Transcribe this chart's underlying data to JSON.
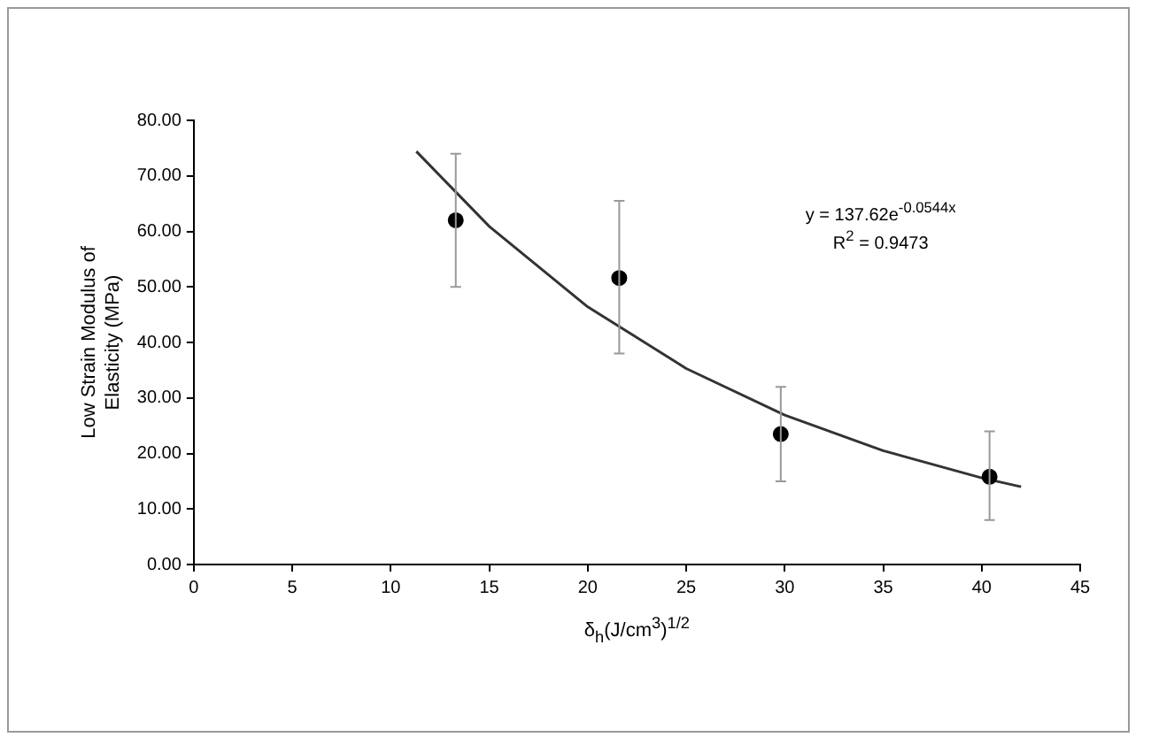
{
  "chart_data": {
    "type": "scatter",
    "xlabel": "δ$_{h}$(J/cm$^{3}$)$^{1/2}$",
    "ylabel": "Low Strain Modulus of\nElasticity (MPa)",
    "x": [
      13.3,
      21.6,
      29.8,
      40.4
    ],
    "series": [
      {
        "color": "#000000",
        "marker": "circle",
        "values": [
          62,
          51.6,
          23.5,
          15.8
        ],
        "errors": [
          [
            50,
            74
          ],
          [
            38,
            65.5
          ],
          [
            15,
            32
          ],
          [
            8,
            24
          ]
        ]
      },
      {
        "type": "line",
        "color": "#333333",
        "marker": "none",
        "x": [
          11.3,
          15,
          20,
          25,
          30,
          35,
          40,
          42
        ],
        "values": [
          74.4,
          60.9,
          46.4,
          35.3,
          26.9,
          20.5,
          15.6,
          14.0
        ]
      }
    ],
    "xlim": [
      0,
      45
    ],
    "xticks": [
      0,
      5,
      10,
      15,
      20,
      25,
      30,
      35,
      40,
      45
    ],
    "ylim": [
      0,
      80
    ],
    "yticks": [
      {
        "value": 0,
        "label": "0.00"
      },
      {
        "value": 10,
        "label": "10.00"
      },
      {
        "value": 20,
        "label": "20.00"
      },
      {
        "value": 30,
        "label": "30.00"
      },
      {
        "value": 40,
        "label": "40.00"
      },
      {
        "value": 50,
        "label": "50.00"
      },
      {
        "value": 60,
        "label": "60.00"
      },
      {
        "value": 70,
        "label": "70.00"
      },
      {
        "value": 80,
        "label": "80.00"
      }
    ],
    "annotations": [
      "y = 137.62e$^{-0.0544x}$",
      "R$^{2}$ = 0.9473"
    ],
    "grid": false,
    "legend": false
  }
}
